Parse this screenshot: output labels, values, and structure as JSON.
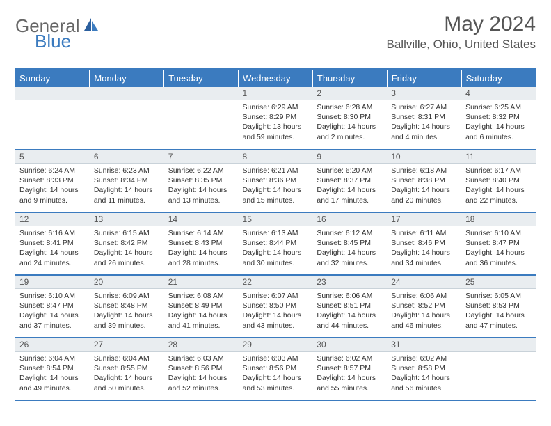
{
  "brand": {
    "general": "General",
    "blue": "Blue"
  },
  "title": "May 2024",
  "location": "Ballville, Ohio, United States",
  "style": {
    "header_bg": "#3b7bbf",
    "header_fg": "#ffffff",
    "daynum_bg": "#e9edf0",
    "border_color": "#3b7bbf",
    "text_color": "#333333",
    "title_color": "#555555",
    "logo_gray": "#666666",
    "logo_blue": "#3b7bbf",
    "font_family": "Arial",
    "title_fontsize": 30,
    "location_fontsize": 17,
    "header_fontsize": 13,
    "daynum_fontsize": 12,
    "cell_fontsize": 10.5
  },
  "weekdays": [
    "Sunday",
    "Monday",
    "Tuesday",
    "Wednesday",
    "Thursday",
    "Friday",
    "Saturday"
  ],
  "weeks": [
    {
      "days": [
        {
          "num": "",
          "sunrise": "",
          "sunset": "",
          "daylight": ""
        },
        {
          "num": "",
          "sunrise": "",
          "sunset": "",
          "daylight": ""
        },
        {
          "num": "",
          "sunrise": "",
          "sunset": "",
          "daylight": ""
        },
        {
          "num": "1",
          "sunrise": "Sunrise: 6:29 AM",
          "sunset": "Sunset: 8:29 PM",
          "daylight": "Daylight: 13 hours and 59 minutes."
        },
        {
          "num": "2",
          "sunrise": "Sunrise: 6:28 AM",
          "sunset": "Sunset: 8:30 PM",
          "daylight": "Daylight: 14 hours and 2 minutes."
        },
        {
          "num": "3",
          "sunrise": "Sunrise: 6:27 AM",
          "sunset": "Sunset: 8:31 PM",
          "daylight": "Daylight: 14 hours and 4 minutes."
        },
        {
          "num": "4",
          "sunrise": "Sunrise: 6:25 AM",
          "sunset": "Sunset: 8:32 PM",
          "daylight": "Daylight: 14 hours and 6 minutes."
        }
      ]
    },
    {
      "days": [
        {
          "num": "5",
          "sunrise": "Sunrise: 6:24 AM",
          "sunset": "Sunset: 8:33 PM",
          "daylight": "Daylight: 14 hours and 9 minutes."
        },
        {
          "num": "6",
          "sunrise": "Sunrise: 6:23 AM",
          "sunset": "Sunset: 8:34 PM",
          "daylight": "Daylight: 14 hours and 11 minutes."
        },
        {
          "num": "7",
          "sunrise": "Sunrise: 6:22 AM",
          "sunset": "Sunset: 8:35 PM",
          "daylight": "Daylight: 14 hours and 13 minutes."
        },
        {
          "num": "8",
          "sunrise": "Sunrise: 6:21 AM",
          "sunset": "Sunset: 8:36 PM",
          "daylight": "Daylight: 14 hours and 15 minutes."
        },
        {
          "num": "9",
          "sunrise": "Sunrise: 6:20 AM",
          "sunset": "Sunset: 8:37 PM",
          "daylight": "Daylight: 14 hours and 17 minutes."
        },
        {
          "num": "10",
          "sunrise": "Sunrise: 6:18 AM",
          "sunset": "Sunset: 8:38 PM",
          "daylight": "Daylight: 14 hours and 20 minutes."
        },
        {
          "num": "11",
          "sunrise": "Sunrise: 6:17 AM",
          "sunset": "Sunset: 8:40 PM",
          "daylight": "Daylight: 14 hours and 22 minutes."
        }
      ]
    },
    {
      "days": [
        {
          "num": "12",
          "sunrise": "Sunrise: 6:16 AM",
          "sunset": "Sunset: 8:41 PM",
          "daylight": "Daylight: 14 hours and 24 minutes."
        },
        {
          "num": "13",
          "sunrise": "Sunrise: 6:15 AM",
          "sunset": "Sunset: 8:42 PM",
          "daylight": "Daylight: 14 hours and 26 minutes."
        },
        {
          "num": "14",
          "sunrise": "Sunrise: 6:14 AM",
          "sunset": "Sunset: 8:43 PM",
          "daylight": "Daylight: 14 hours and 28 minutes."
        },
        {
          "num": "15",
          "sunrise": "Sunrise: 6:13 AM",
          "sunset": "Sunset: 8:44 PM",
          "daylight": "Daylight: 14 hours and 30 minutes."
        },
        {
          "num": "16",
          "sunrise": "Sunrise: 6:12 AM",
          "sunset": "Sunset: 8:45 PM",
          "daylight": "Daylight: 14 hours and 32 minutes."
        },
        {
          "num": "17",
          "sunrise": "Sunrise: 6:11 AM",
          "sunset": "Sunset: 8:46 PM",
          "daylight": "Daylight: 14 hours and 34 minutes."
        },
        {
          "num": "18",
          "sunrise": "Sunrise: 6:10 AM",
          "sunset": "Sunset: 8:47 PM",
          "daylight": "Daylight: 14 hours and 36 minutes."
        }
      ]
    },
    {
      "days": [
        {
          "num": "19",
          "sunrise": "Sunrise: 6:10 AM",
          "sunset": "Sunset: 8:47 PM",
          "daylight": "Daylight: 14 hours and 37 minutes."
        },
        {
          "num": "20",
          "sunrise": "Sunrise: 6:09 AM",
          "sunset": "Sunset: 8:48 PM",
          "daylight": "Daylight: 14 hours and 39 minutes."
        },
        {
          "num": "21",
          "sunrise": "Sunrise: 6:08 AM",
          "sunset": "Sunset: 8:49 PM",
          "daylight": "Daylight: 14 hours and 41 minutes."
        },
        {
          "num": "22",
          "sunrise": "Sunrise: 6:07 AM",
          "sunset": "Sunset: 8:50 PM",
          "daylight": "Daylight: 14 hours and 43 minutes."
        },
        {
          "num": "23",
          "sunrise": "Sunrise: 6:06 AM",
          "sunset": "Sunset: 8:51 PM",
          "daylight": "Daylight: 14 hours and 44 minutes."
        },
        {
          "num": "24",
          "sunrise": "Sunrise: 6:06 AM",
          "sunset": "Sunset: 8:52 PM",
          "daylight": "Daylight: 14 hours and 46 minutes."
        },
        {
          "num": "25",
          "sunrise": "Sunrise: 6:05 AM",
          "sunset": "Sunset: 8:53 PM",
          "daylight": "Daylight: 14 hours and 47 minutes."
        }
      ]
    },
    {
      "days": [
        {
          "num": "26",
          "sunrise": "Sunrise: 6:04 AM",
          "sunset": "Sunset: 8:54 PM",
          "daylight": "Daylight: 14 hours and 49 minutes."
        },
        {
          "num": "27",
          "sunrise": "Sunrise: 6:04 AM",
          "sunset": "Sunset: 8:55 PM",
          "daylight": "Daylight: 14 hours and 50 minutes."
        },
        {
          "num": "28",
          "sunrise": "Sunrise: 6:03 AM",
          "sunset": "Sunset: 8:56 PM",
          "daylight": "Daylight: 14 hours and 52 minutes."
        },
        {
          "num": "29",
          "sunrise": "Sunrise: 6:03 AM",
          "sunset": "Sunset: 8:56 PM",
          "daylight": "Daylight: 14 hours and 53 minutes."
        },
        {
          "num": "30",
          "sunrise": "Sunrise: 6:02 AM",
          "sunset": "Sunset: 8:57 PM",
          "daylight": "Daylight: 14 hours and 55 minutes."
        },
        {
          "num": "31",
          "sunrise": "Sunrise: 6:02 AM",
          "sunset": "Sunset: 8:58 PM",
          "daylight": "Daylight: 14 hours and 56 minutes."
        },
        {
          "num": "",
          "sunrise": "",
          "sunset": "",
          "daylight": ""
        }
      ]
    }
  ]
}
